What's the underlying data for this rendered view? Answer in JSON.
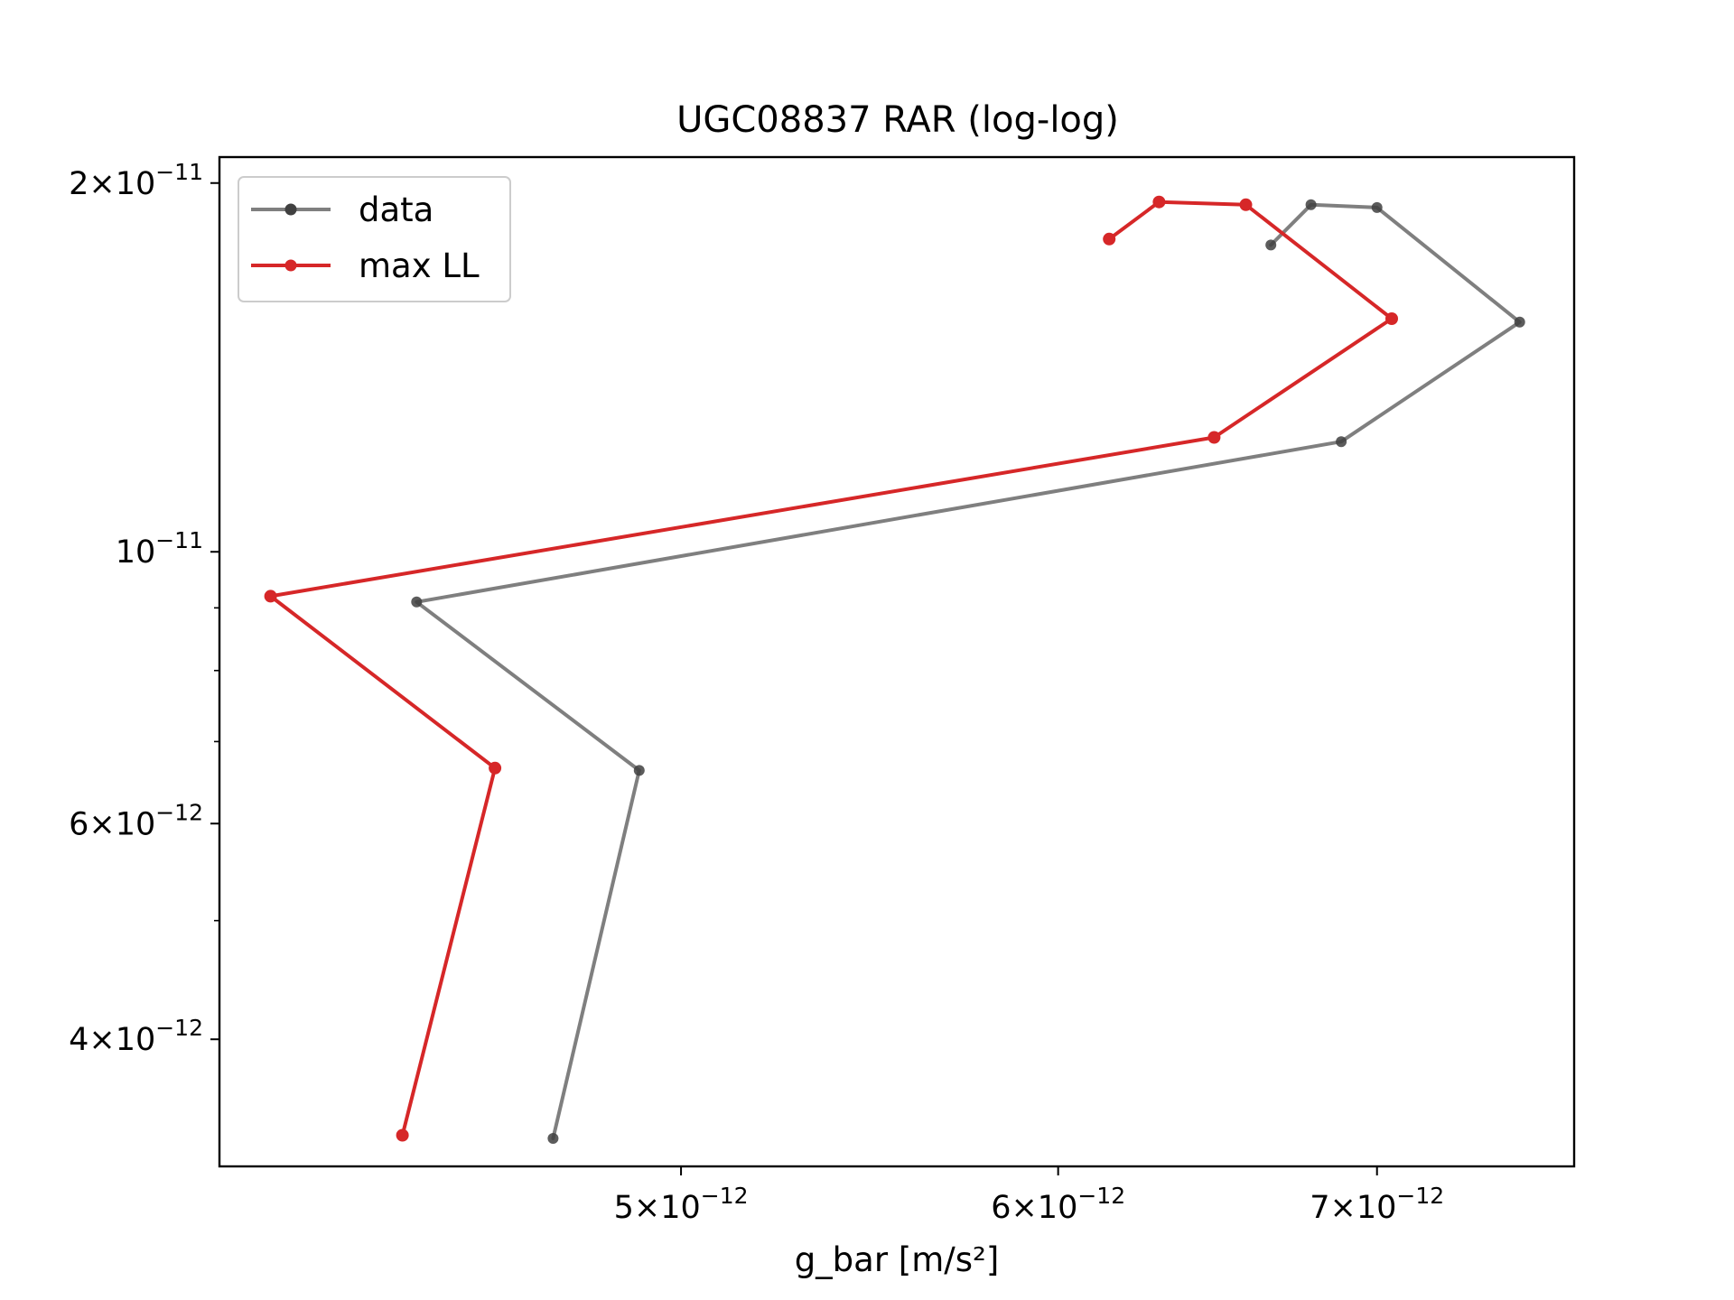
{
  "chart_data": {
    "type": "line",
    "title": "UGC08837 RAR (log-log)",
    "xlabel": "g_bar [m/s²]",
    "ylabel": "",
    "xscale": "log",
    "yscale": "log",
    "xlim": [
      4e-12,
      7.7e-12
    ],
    "ylim": [
      3.15e-12,
      2.1e-11
    ],
    "x_ticks": [
      {
        "value": 5e-12,
        "mantissa": "5",
        "exponent": "−12"
      },
      {
        "value": 6e-12,
        "mantissa": "6",
        "exponent": "−12"
      },
      {
        "value": 7e-12,
        "mantissa": "7",
        "exponent": "−12"
      }
    ],
    "y_ticks": [
      {
        "value": 2e-11,
        "mantissa": "2",
        "exponent": "−11"
      },
      {
        "value": 1e-11,
        "mantissa": "",
        "exponent": "−11"
      },
      {
        "value": 6e-12,
        "mantissa": "6",
        "exponent": "−12"
      },
      {
        "value": 4e-12,
        "mantissa": "4",
        "exponent": "−12"
      }
    ],
    "y_minor_ticks": [
      3e-12,
      5e-12,
      7e-12,
      8e-12,
      9e-12
    ],
    "grid": false,
    "legend_position": "top-left",
    "series": [
      {
        "name": "data",
        "color": "#7f7f7f",
        "marker_color": "#404040",
        "x": [
          6.65e-12,
          6.78e-12,
          7e-12,
          7.5e-12,
          6.88e-12,
          4.4e-12,
          4.9e-12,
          4.7e-12
        ],
        "y": [
          1.78e-11,
          1.92e-11,
          1.91e-11,
          1.54e-11,
          1.23e-11,
          9.1e-12,
          6.63e-12,
          3.32e-12
        ]
      },
      {
        "name": "max LL",
        "color": "#d62728",
        "marker_color": "#d62728",
        "x": [
          6.15e-12,
          6.3e-12,
          6.57e-12,
          7.05e-12,
          6.47e-12,
          4.1e-12,
          4.57e-12,
          4.37e-12
        ],
        "y": [
          1.8e-11,
          1.93e-11,
          1.92e-11,
          1.55e-11,
          1.24e-11,
          9.2e-12,
          6.66e-12,
          3.34e-12
        ]
      }
    ]
  }
}
